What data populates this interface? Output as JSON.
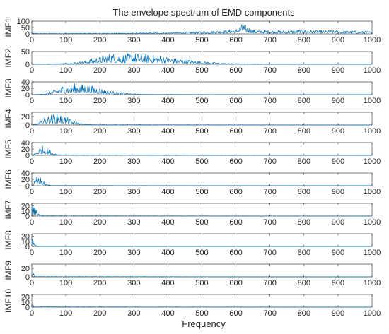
{
  "chart_data": {
    "type": "line",
    "title": "The envelope spectrum of EMD components",
    "xlabel": "Frequency",
    "xlim": [
      0,
      1000
    ],
    "xticks": [
      0,
      100,
      200,
      300,
      400,
      500,
      600,
      700,
      800,
      900,
      1000
    ],
    "line_color": "#0072BD",
    "grid": false,
    "panels": [
      {
        "ylabel": "IMF1",
        "ylim": [
          0,
          100
        ],
        "yticks": [
          0,
          50,
          100
        ],
        "envelope": [
          [
            0,
            5
          ],
          [
            100,
            5
          ],
          [
            200,
            6
          ],
          [
            300,
            8
          ],
          [
            400,
            12
          ],
          [
            500,
            20
          ],
          [
            550,
            28
          ],
          [
            600,
            40
          ],
          [
            620,
            85
          ],
          [
            650,
            35
          ],
          [
            700,
            30
          ],
          [
            750,
            28
          ],
          [
            800,
            35
          ],
          [
            850,
            30
          ],
          [
            900,
            28
          ],
          [
            950,
            25
          ],
          [
            1000,
            20
          ]
        ]
      },
      {
        "ylabel": "IMF2",
        "ylim": [
          0,
          50
        ],
        "yticks": [
          0,
          50
        ],
        "envelope": [
          [
            0,
            1
          ],
          [
            50,
            2
          ],
          [
            100,
            5
          ],
          [
            150,
            12
          ],
          [
            180,
            25
          ],
          [
            200,
            30
          ],
          [
            230,
            45
          ],
          [
            260,
            40
          ],
          [
            300,
            45
          ],
          [
            330,
            40
          ],
          [
            380,
            35
          ],
          [
            420,
            25
          ],
          [
            460,
            20
          ],
          [
            500,
            12
          ],
          [
            550,
            6
          ],
          [
            600,
            3
          ],
          [
            700,
            1
          ],
          [
            1000,
            0
          ]
        ]
      },
      {
        "ylabel": "IMF3",
        "ylim": [
          0,
          40
        ],
        "yticks": [
          0,
          20,
          40
        ],
        "envelope": [
          [
            0,
            0
          ],
          [
            30,
            2
          ],
          [
            60,
            12
          ],
          [
            90,
            28
          ],
          [
            130,
            35
          ],
          [
            160,
            32
          ],
          [
            190,
            25
          ],
          [
            220,
            14
          ],
          [
            260,
            8
          ],
          [
            300,
            3
          ],
          [
            340,
            1
          ],
          [
            1000,
            0
          ]
        ]
      },
      {
        "ylabel": "IMF4",
        "ylim": [
          0,
          30
        ],
        "yticks": [
          0,
          20
        ],
        "envelope": [
          [
            0,
            0
          ],
          [
            20,
            5
          ],
          [
            40,
            20
          ],
          [
            60,
            25
          ],
          [
            80,
            28
          ],
          [
            100,
            22
          ],
          [
            120,
            10
          ],
          [
            150,
            3
          ],
          [
            180,
            1
          ],
          [
            1000,
            0
          ]
        ]
      },
      {
        "ylabel": "IMF5",
        "ylim": [
          0,
          40
        ],
        "yticks": [
          0,
          20,
          40
        ],
        "envelope": [
          [
            0,
            0
          ],
          [
            10,
            8
          ],
          [
            20,
            25
          ],
          [
            30,
            32
          ],
          [
            40,
            28
          ],
          [
            55,
            15
          ],
          [
            70,
            6
          ],
          [
            90,
            2
          ],
          [
            1000,
            0
          ]
        ]
      },
      {
        "ylabel": "IMF6",
        "ylim": [
          0,
          40
        ],
        "yticks": [
          0,
          20,
          40
        ],
        "envelope": [
          [
            0,
            0
          ],
          [
            5,
            10
          ],
          [
            15,
            30
          ],
          [
            20,
            35
          ],
          [
            28,
            25
          ],
          [
            38,
            10
          ],
          [
            50,
            3
          ],
          [
            60,
            1
          ],
          [
            1000,
            0
          ]
        ]
      },
      {
        "ylabel": "IMF7",
        "ylim": [
          0,
          25
        ],
        "yticks": [
          0,
          10,
          20
        ],
        "envelope": [
          [
            0,
            2
          ],
          [
            3,
            24
          ],
          [
            8,
            18
          ],
          [
            12,
            22
          ],
          [
            16,
            12
          ],
          [
            22,
            4
          ],
          [
            30,
            1
          ],
          [
            1000,
            0
          ]
        ]
      },
      {
        "ylabel": "IMF8",
        "ylim": [
          0,
          25
        ],
        "yticks": [
          0,
          10,
          20
        ],
        "envelope": [
          [
            0,
            4
          ],
          [
            2,
            22
          ],
          [
            5,
            18
          ],
          [
            8,
            10
          ],
          [
            12,
            3
          ],
          [
            18,
            0
          ],
          [
            1000,
            0
          ]
        ]
      },
      {
        "ylabel": "IMF9",
        "ylim": [
          0,
          30
        ],
        "yticks": [
          0,
          20
        ],
        "envelope": [
          [
            0,
            2
          ],
          [
            2,
            25
          ],
          [
            4,
            18
          ],
          [
            6,
            6
          ],
          [
            10,
            1
          ],
          [
            1000,
            0
          ]
        ]
      },
      {
        "ylabel": "IMF10",
        "ylim": [
          0,
          25
        ],
        "yticks": [
          0,
          10,
          20
        ],
        "envelope": [
          [
            0,
            3
          ],
          [
            1,
            16
          ],
          [
            3,
            6
          ],
          [
            6,
            1
          ],
          [
            1000,
            0
          ]
        ]
      }
    ]
  }
}
